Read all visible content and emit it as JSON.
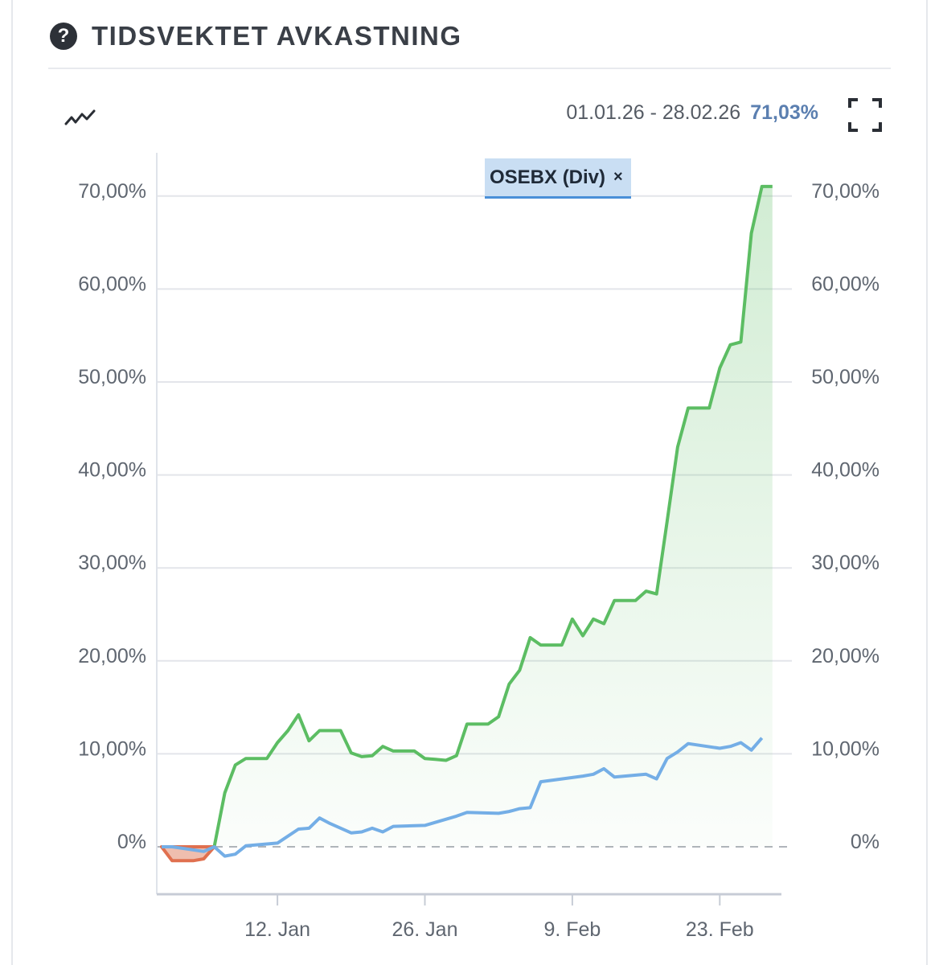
{
  "header": {
    "title": "TIDSVEKTET AVKASTNING",
    "help_icon": "?"
  },
  "toolbar": {
    "range_text": "01.01.26 - 28.02.26",
    "return_text": "71,03%"
  },
  "legend": {
    "chip_label": "OSEBX (Div)",
    "close_glyph": "×"
  },
  "colors": {
    "portfolio_line": "#5cbd63",
    "portfolio_negative": "#e0704f",
    "benchmark_line": "#74aee6",
    "gridline": "#e3e5ea",
    "zero_line": "#b0b4bb"
  },
  "chart_data": {
    "type": "line",
    "x_tick_labels": [
      "12. Jan",
      "26. Jan",
      "9. Feb",
      "23. Feb"
    ],
    "x_tick_dates": [
      "2026-01-12",
      "2026-01-26",
      "2026-02-09",
      "2026-02-23"
    ],
    "y_tick_labels": [
      "0%",
      "10,00%",
      "20,00%",
      "30,00%",
      "40,00%",
      "50,00%",
      "60,00%",
      "70,00%"
    ],
    "y_ticks": [
      0,
      10,
      20,
      30,
      40,
      50,
      60,
      70
    ],
    "ylim": [
      -5,
      75
    ],
    "xlim": [
      "2026-01-01",
      "2026-02-28"
    ],
    "series": [
      {
        "name": "",
        "color": "#5cbd63",
        "area_fill": true,
        "points": [
          {
            "x": "2026-01-01",
            "y": 0
          },
          {
            "x": "2026-01-02",
            "y": -1.5
          },
          {
            "x": "2026-01-04",
            "y": -1.5
          },
          {
            "x": "2026-01-05",
            "y": -1.3
          },
          {
            "x": "2026-01-06",
            "y": 0
          },
          {
            "x": "2026-01-07",
            "y": 5.8
          },
          {
            "x": "2026-01-08",
            "y": 8.8
          },
          {
            "x": "2026-01-09",
            "y": 9.5
          },
          {
            "x": "2026-01-11",
            "y": 9.5
          },
          {
            "x": "2026-01-12",
            "y": 11.2
          },
          {
            "x": "2026-01-13",
            "y": 12.5
          },
          {
            "x": "2026-01-14",
            "y": 14.2
          },
          {
            "x": "2026-01-15",
            "y": 11.4
          },
          {
            "x": "2026-01-16",
            "y": 12.5
          },
          {
            "x": "2026-01-18",
            "y": 12.5
          },
          {
            "x": "2026-01-19",
            "y": 10.1
          },
          {
            "x": "2026-01-20",
            "y": 9.7
          },
          {
            "x": "2026-01-21",
            "y": 9.8
          },
          {
            "x": "2026-01-22",
            "y": 10.8
          },
          {
            "x": "2026-01-23",
            "y": 10.3
          },
          {
            "x": "2026-01-25",
            "y": 10.3
          },
          {
            "x": "2026-01-26",
            "y": 9.5
          },
          {
            "x": "2026-01-27",
            "y": 9.4
          },
          {
            "x": "2026-01-28",
            "y": 9.3
          },
          {
            "x": "2026-01-29",
            "y": 9.8
          },
          {
            "x": "2026-01-30",
            "y": 13.2
          },
          {
            "x": "2026-02-01",
            "y": 13.2
          },
          {
            "x": "2026-02-02",
            "y": 14.0
          },
          {
            "x": "2026-02-03",
            "y": 17.5
          },
          {
            "x": "2026-02-04",
            "y": 19.0
          },
          {
            "x": "2026-02-05",
            "y": 22.5
          },
          {
            "x": "2026-02-06",
            "y": 21.7
          },
          {
            "x": "2026-02-08",
            "y": 21.7
          },
          {
            "x": "2026-02-09",
            "y": 24.5
          },
          {
            "x": "2026-02-10",
            "y": 22.7
          },
          {
            "x": "2026-02-11",
            "y": 24.5
          },
          {
            "x": "2026-02-12",
            "y": 24.0
          },
          {
            "x": "2026-02-13",
            "y": 26.5
          },
          {
            "x": "2026-02-15",
            "y": 26.5
          },
          {
            "x": "2026-02-16",
            "y": 27.5
          },
          {
            "x": "2026-02-17",
            "y": 27.2
          },
          {
            "x": "2026-02-18",
            "y": 35.0
          },
          {
            "x": "2026-02-19",
            "y": 43.0
          },
          {
            "x": "2026-02-20",
            "y": 47.2
          },
          {
            "x": "2026-02-22",
            "y": 47.2
          },
          {
            "x": "2026-02-23",
            "y": 51.5
          },
          {
            "x": "2026-02-24",
            "y": 54.0
          },
          {
            "x": "2026-02-25",
            "y": 54.3
          },
          {
            "x": "2026-02-26",
            "y": 66.0
          },
          {
            "x": "2026-02-27",
            "y": 71.03
          },
          {
            "x": "2026-02-28",
            "y": 71.03
          }
        ]
      },
      {
        "name": "OSEBX (Div)",
        "color": "#74aee6",
        "area_fill": false,
        "points": [
          {
            "x": "2026-01-01",
            "y": 0
          },
          {
            "x": "2026-01-02",
            "y": 0
          },
          {
            "x": "2026-01-05",
            "y": -0.5
          },
          {
            "x": "2026-01-06",
            "y": 0
          },
          {
            "x": "2026-01-07",
            "y": -1.0
          },
          {
            "x": "2026-01-08",
            "y": -0.8
          },
          {
            "x": "2026-01-09",
            "y": 0.1
          },
          {
            "x": "2026-01-12",
            "y": 0.4
          },
          {
            "x": "2026-01-14",
            "y": 1.9
          },
          {
            "x": "2026-01-15",
            "y": 2.0
          },
          {
            "x": "2026-01-16",
            "y": 3.1
          },
          {
            "x": "2026-01-17",
            "y": 2.5
          },
          {
            "x": "2026-01-19",
            "y": 1.5
          },
          {
            "x": "2026-01-20",
            "y": 1.6
          },
          {
            "x": "2026-01-21",
            "y": 2.0
          },
          {
            "x": "2026-01-22",
            "y": 1.6
          },
          {
            "x": "2026-01-23",
            "y": 2.2
          },
          {
            "x": "2026-01-26",
            "y": 2.3
          },
          {
            "x": "2026-01-29",
            "y": 3.3
          },
          {
            "x": "2026-01-30",
            "y": 3.7
          },
          {
            "x": "2026-02-02",
            "y": 3.6
          },
          {
            "x": "2026-02-03",
            "y": 3.8
          },
          {
            "x": "2026-02-04",
            "y": 4.1
          },
          {
            "x": "2026-02-05",
            "y": 4.2
          },
          {
            "x": "2026-02-06",
            "y": 7.0
          },
          {
            "x": "2026-02-08",
            "y": 7.3
          },
          {
            "x": "2026-02-10",
            "y": 7.6
          },
          {
            "x": "2026-02-11",
            "y": 7.8
          },
          {
            "x": "2026-02-12",
            "y": 8.4
          },
          {
            "x": "2026-02-13",
            "y": 7.5
          },
          {
            "x": "2026-02-16",
            "y": 7.8
          },
          {
            "x": "2026-02-17",
            "y": 7.3
          },
          {
            "x": "2026-02-18",
            "y": 9.5
          },
          {
            "x": "2026-02-19",
            "y": 10.2
          },
          {
            "x": "2026-02-20",
            "y": 11.1
          },
          {
            "x": "2026-02-23",
            "y": 10.6
          },
          {
            "x": "2026-02-24",
            "y": 10.8
          },
          {
            "x": "2026-02-25",
            "y": 11.2
          },
          {
            "x": "2026-02-26",
            "y": 10.4
          },
          {
            "x": "2026-02-27",
            "y": 11.7
          }
        ]
      }
    ],
    "reference_line": {
      "y": 0,
      "style": "dashed"
    },
    "grid": true,
    "legend_position": "top-left"
  }
}
